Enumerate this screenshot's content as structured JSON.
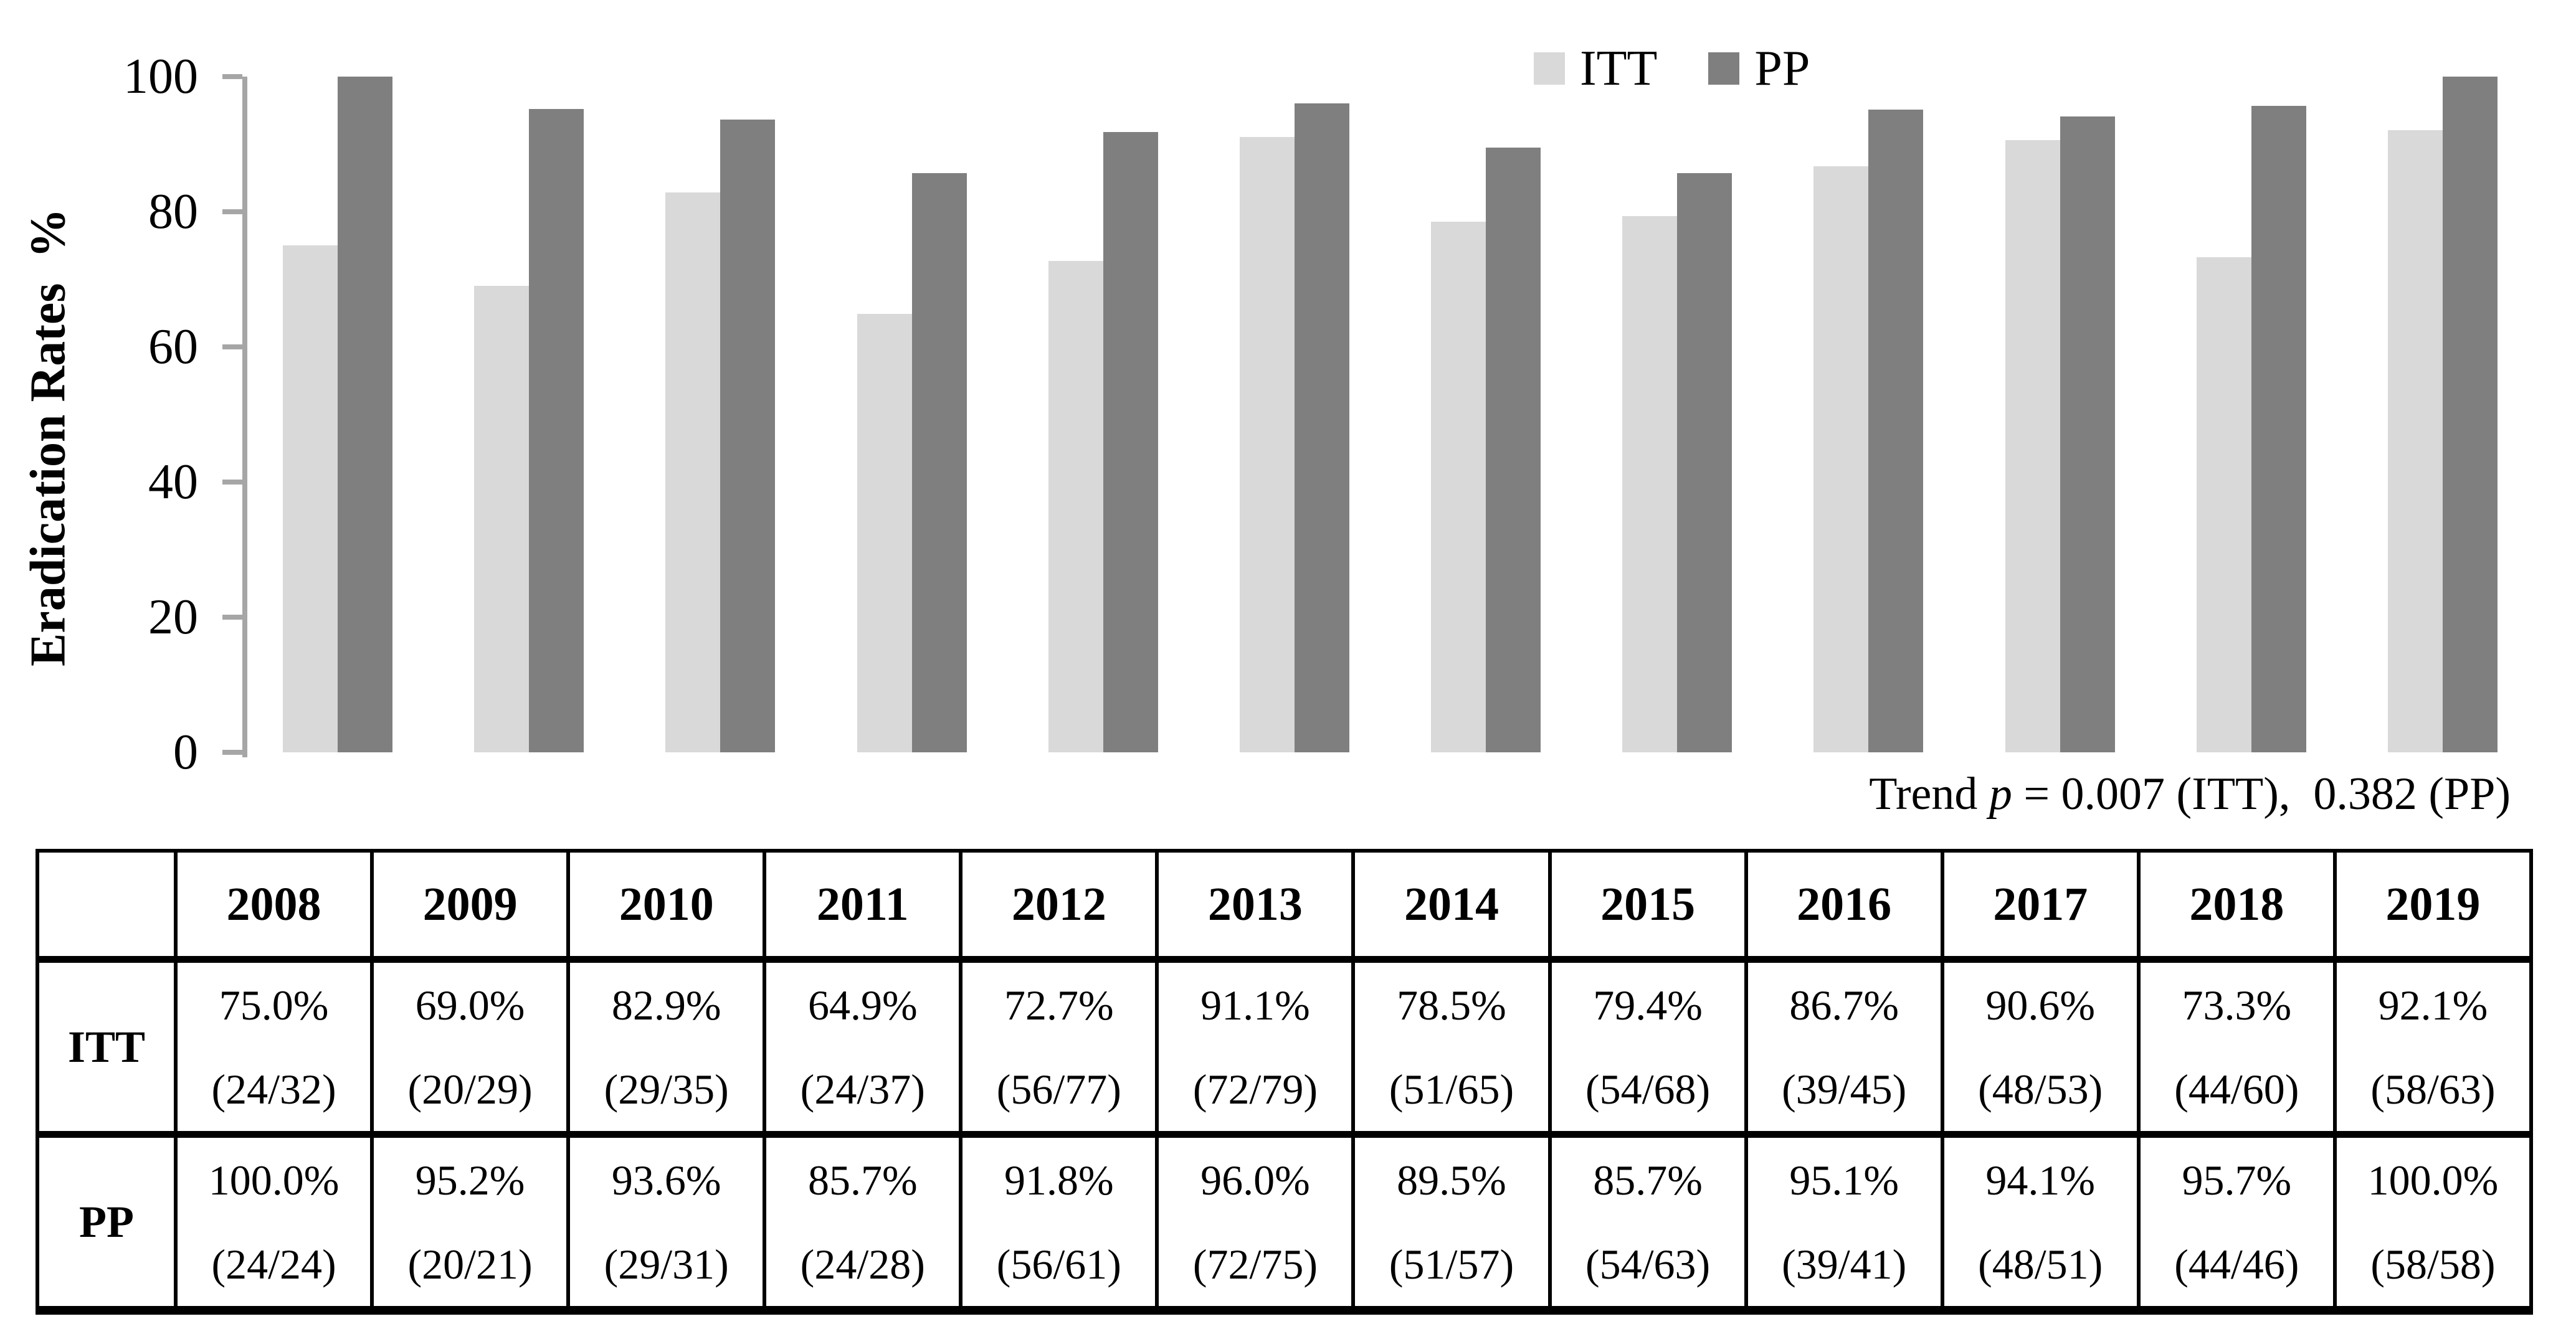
{
  "chart_data": {
    "type": "bar",
    "title": "",
    "ylabel": "Eradication Rates  %",
    "ylim": [
      0,
      100
    ],
    "yticks": [
      0,
      20,
      40,
      60,
      80,
      100
    ],
    "grid": false,
    "legend_position": "top-center",
    "categories": [
      "2008",
      "2009",
      "2010",
      "2011",
      "2012",
      "2013",
      "2014",
      "2015",
      "2016",
      "2017",
      "2018",
      "2019"
    ],
    "series": [
      {
        "name": "ITT",
        "color": "#d9d9d9",
        "values": [
          75.0,
          69.0,
          82.9,
          64.9,
          72.7,
          91.1,
          78.5,
          79.4,
          86.7,
          90.6,
          73.3,
          92.1
        ]
      },
      {
        "name": "PP",
        "color": "#7f7f7f",
        "values": [
          100.0,
          95.2,
          93.6,
          85.7,
          91.8,
          96.0,
          89.5,
          85.7,
          95.1,
          94.1,
          95.7,
          100.0
        ]
      }
    ],
    "annotation": "Trend p = 0.007 (ITT),  0.382 (PP)"
  },
  "annotation": {
    "prefix": "Trend ",
    "p": "p",
    "suffix": " = 0.007 (ITT),  0.382 (PP)"
  },
  "colors": {
    "itt_bar": "#d9d9d9",
    "pp_bar": "#7f7f7f",
    "axis": "#a6a6a6",
    "text": "#000000"
  },
  "table": {
    "corner": "",
    "years": [
      "2008",
      "2009",
      "2010",
      "2011",
      "2012",
      "2013",
      "2014",
      "2015",
      "2016",
      "2017",
      "2018",
      "2019"
    ],
    "rows": [
      {
        "label": "ITT",
        "cells": [
          {
            "pct": "75.0%",
            "frac": "(24/32)"
          },
          {
            "pct": "69.0%",
            "frac": "(20/29)"
          },
          {
            "pct": "82.9%",
            "frac": "(29/35)"
          },
          {
            "pct": "64.9%",
            "frac": "(24/37)"
          },
          {
            "pct": "72.7%",
            "frac": "(56/77)"
          },
          {
            "pct": "91.1%",
            "frac": "(72/79)"
          },
          {
            "pct": "78.5%",
            "frac": "(51/65)"
          },
          {
            "pct": "79.4%",
            "frac": "(54/68)"
          },
          {
            "pct": "86.7%",
            "frac": "(39/45)"
          },
          {
            "pct": "90.6%",
            "frac": "(48/53)"
          },
          {
            "pct": "73.3%",
            "frac": "(44/60)"
          },
          {
            "pct": "92.1%",
            "frac": "(58/63)"
          }
        ]
      },
      {
        "label": "PP",
        "cells": [
          {
            "pct": "100.0%",
            "frac": "(24/24)"
          },
          {
            "pct": "95.2%",
            "frac": "(20/21)"
          },
          {
            "pct": "93.6%",
            "frac": "(29/31)"
          },
          {
            "pct": "85.7%",
            "frac": "(24/28)"
          },
          {
            "pct": "91.8%",
            "frac": "(56/61)"
          },
          {
            "pct": "96.0%",
            "frac": "(72/75)"
          },
          {
            "pct": "89.5%",
            "frac": "(51/57)"
          },
          {
            "pct": "85.7%",
            "frac": "(54/63)"
          },
          {
            "pct": "95.1%",
            "frac": "(39/41)"
          },
          {
            "pct": "94.1%",
            "frac": "(48/51)"
          },
          {
            "pct": "95.7%",
            "frac": "(44/46)"
          },
          {
            "pct": "100.0%",
            "frac": "(58/58)"
          }
        ]
      }
    ]
  }
}
